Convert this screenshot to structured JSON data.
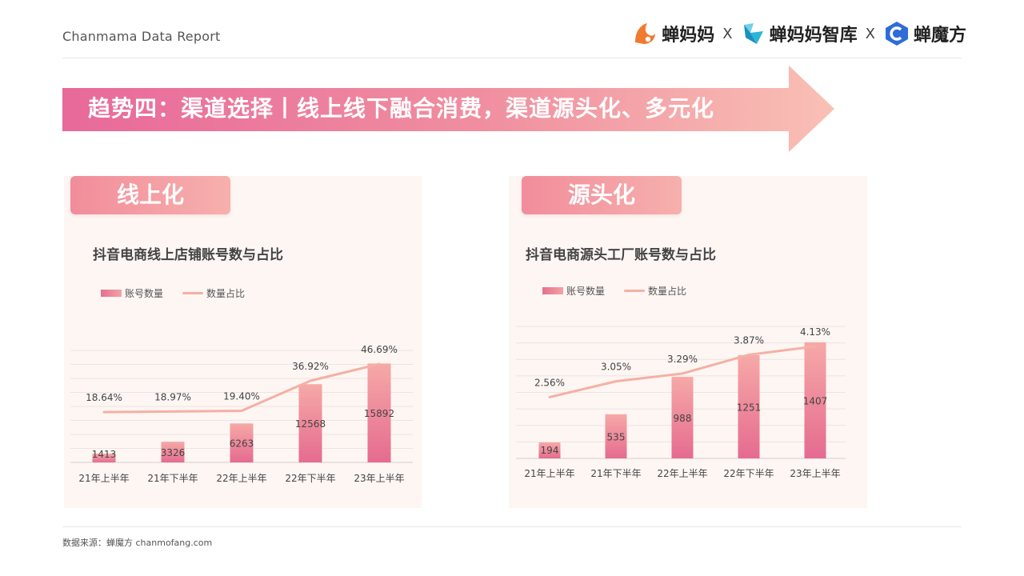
{
  "header": {
    "title": "Chanmama Data Report"
  },
  "logos": [
    {
      "name": "蝉妈妈",
      "icon": "chanmama-logo-icon",
      "color": "#f07a2e"
    },
    {
      "name": "蝉妈妈智库",
      "icon": "chanmama-think-tank-logo-icon",
      "color": "#2bb6d6"
    },
    {
      "name": "蝉魔方",
      "icon": "chanmofang-logo-icon",
      "color": "#2f6cd8"
    }
  ],
  "logo_separator": "X",
  "banner": {
    "text": "趋势四：渠道选择丨线上线下融合消费，渠道源头化、多元化"
  },
  "left_panel": {
    "tag": "线上化",
    "chart_title": "抖音电商线上店铺账号数与占比"
  },
  "right_panel": {
    "tag": "源头化",
    "chart_title": "抖音电商源头工厂账号数与占比"
  },
  "legend": {
    "bar": "账号数量",
    "line": "数量占比"
  },
  "colors": {
    "bar_top": "#f6a9a7",
    "bar_bottom": "#e56b90",
    "line": "#f5b0a4",
    "banner_start": "#e8699a",
    "banner_end": "#f6a9a8"
  },
  "source": "数据来源：蝉魔方 chanmofang.com",
  "chart_data": [
    {
      "type": "bar",
      "title": "抖音电商线上店铺账号数与占比",
      "categories": [
        "21年上半年",
        "21年下半年",
        "22年上半年",
        "22年下半年",
        "23年上半年"
      ],
      "series": [
        {
          "name": "账号数量",
          "type": "bar",
          "values": [
            1413,
            3326,
            6263,
            12568,
            15892
          ],
          "labels": [
            "1413",
            "3326",
            "6263",
            "12568",
            "15892"
          ]
        },
        {
          "name": "数量占比",
          "type": "line",
          "values": [
            18.64,
            18.97,
            19.4,
            36.92,
            46.69
          ],
          "labels": [
            "18.64%",
            "18.97%",
            "19.40%",
            "36.92%",
            "46.69%"
          ]
        }
      ],
      "ylim_bar": [
        0,
        18000
      ],
      "ylim_line": [
        0,
        50
      ],
      "legend": "top-left",
      "grid": true
    },
    {
      "type": "bar",
      "title": "抖音电商源头工厂账号数与占比",
      "categories": [
        "21年上半年",
        "21年下半年",
        "22年上半年",
        "22年下半年",
        "23年上半年"
      ],
      "series": [
        {
          "name": "账号数量",
          "type": "bar",
          "values": [
            194,
            535,
            988,
            1251,
            1407
          ],
          "labels": [
            "194",
            "535",
            "988",
            "1251",
            "1407"
          ]
        },
        {
          "name": "数量占比",
          "type": "line",
          "values": [
            2.56,
            3.05,
            3.29,
            3.87,
            4.13
          ],
          "labels": [
            "2.56%",
            "3.05%",
            "3.29%",
            "3.87%",
            "4.13%"
          ]
        }
      ],
      "ylim_bar": [
        0,
        1600
      ],
      "ylim_line": [
        0,
        4.5
      ],
      "legend": "top-left",
      "grid": true
    }
  ]
}
